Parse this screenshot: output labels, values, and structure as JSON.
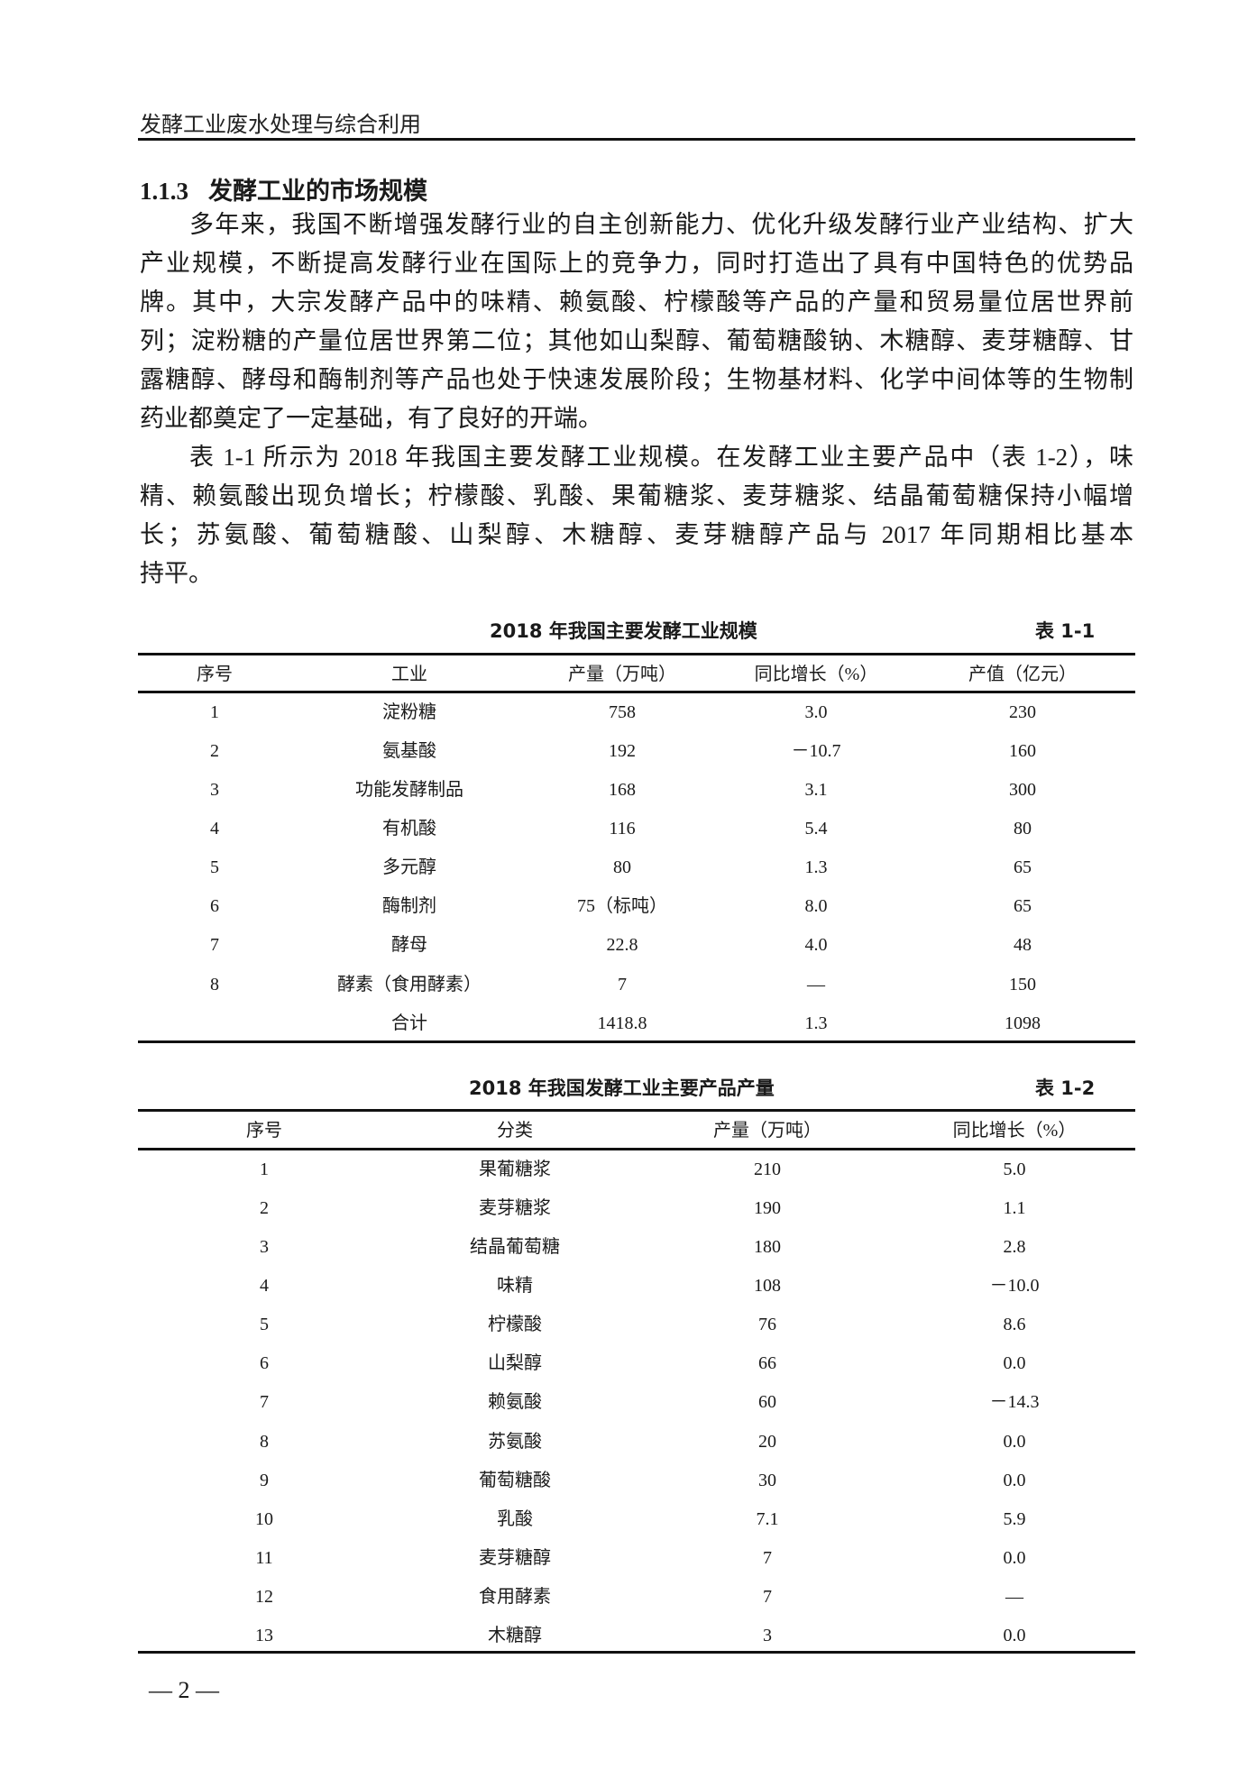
{
  "running_header": "发酵工业废水处理与综合利用",
  "section": {
    "number": "1.1.3",
    "title": "发酵工业的市场规模"
  },
  "paragraphs": [
    [
      "多年来，我国不断增强发酵行业的自主创新能力、优化升级发酵行业产业结构、扩大",
      "产业规模，不断提高发酵行业在国际上的竞争力，同时打造出了具有中国特色的优势品",
      "牌。其中，大宗发酵产品中的味精、赖氨酸、柠檬酸等产品的产量和贸易量位居世界前",
      "列；淀粉糖的产量位居世界第二位；其他如山梨醇、葡萄糖酸钠、木糖醇、麦芽糖醇、甘",
      "露糖醇、酵母和酶制剂等产品也处于快速发展阶段；生物基材料、化学中间体等的生物制",
      "药业都奠定了一定基础，有了良好的开端。"
    ],
    [
      "表 1-1 所示为 2018 年我国主要发酵工业规模。在发酵工业主要产品中（表 1-2），味",
      "精、赖氨酸出现负增长；柠檬酸、乳酸、果葡糖浆、麦芽糖浆、结晶葡萄糖保持小幅增",
      "长；苏氨酸、葡萄糖酸、山梨醇、木糖醇、麦芽糖醇产品与 2017 年同期相比基本",
      "持平。"
    ]
  ],
  "table1": {
    "title": "2018 年我国主要发酵工业规模",
    "label": "表 1-1",
    "headers": [
      "序号",
      "工业",
      "产量（万吨）",
      "同比增长（%）",
      "产值（亿元）"
    ],
    "rows": [
      [
        "1",
        "淀粉糖",
        "758",
        "3.0",
        "230"
      ],
      [
        "2",
        "氨基酸",
        "192",
        "－10.7",
        "160"
      ],
      [
        "3",
        "功能发酵制品",
        "168",
        "3.1",
        "300"
      ],
      [
        "4",
        "有机酸",
        "116",
        "5.4",
        "80"
      ],
      [
        "5",
        "多元醇",
        "80",
        "1.3",
        "65"
      ],
      [
        "6",
        "酶制剂",
        "75（标吨）",
        "8.0",
        "65"
      ],
      [
        "7",
        "酵母",
        "22.8",
        "4.0",
        "48"
      ],
      [
        "8",
        "酵素（食用酵素）",
        "7",
        "—",
        "150"
      ],
      [
        "",
        "合计",
        "1418.8",
        "1.3",
        "1098"
      ]
    ]
  },
  "table2": {
    "title": "2018 年我国发酵工业主要产品产量",
    "label": "表 1-2",
    "headers": [
      "序号",
      "分类",
      "产量（万吨）",
      "同比增长（%）"
    ],
    "rows": [
      [
        "1",
        "果葡糖浆",
        "210",
        "5.0"
      ],
      [
        "2",
        "麦芽糖浆",
        "190",
        "1.1"
      ],
      [
        "3",
        "结晶葡萄糖",
        "180",
        "2.8"
      ],
      [
        "4",
        "味精",
        "108",
        "－10.0"
      ],
      [
        "5",
        "柠檬酸",
        "76",
        "8.6"
      ],
      [
        "6",
        "山梨醇",
        "66",
        "0.0"
      ],
      [
        "7",
        "赖氨酸",
        "60",
        "－14.3"
      ],
      [
        "8",
        "苏氨酸",
        "20",
        "0.0"
      ],
      [
        "9",
        "葡萄糖酸",
        "30",
        "0.0"
      ],
      [
        "10",
        "乳酸",
        "7.1",
        "5.9"
      ],
      [
        "11",
        "麦芽糖醇",
        "7",
        "0.0"
      ],
      [
        "12",
        "食用酵素",
        "7",
        "—"
      ],
      [
        "13",
        "木糖醇",
        "3",
        "0.0"
      ]
    ]
  },
  "page_number": "— 2 —"
}
